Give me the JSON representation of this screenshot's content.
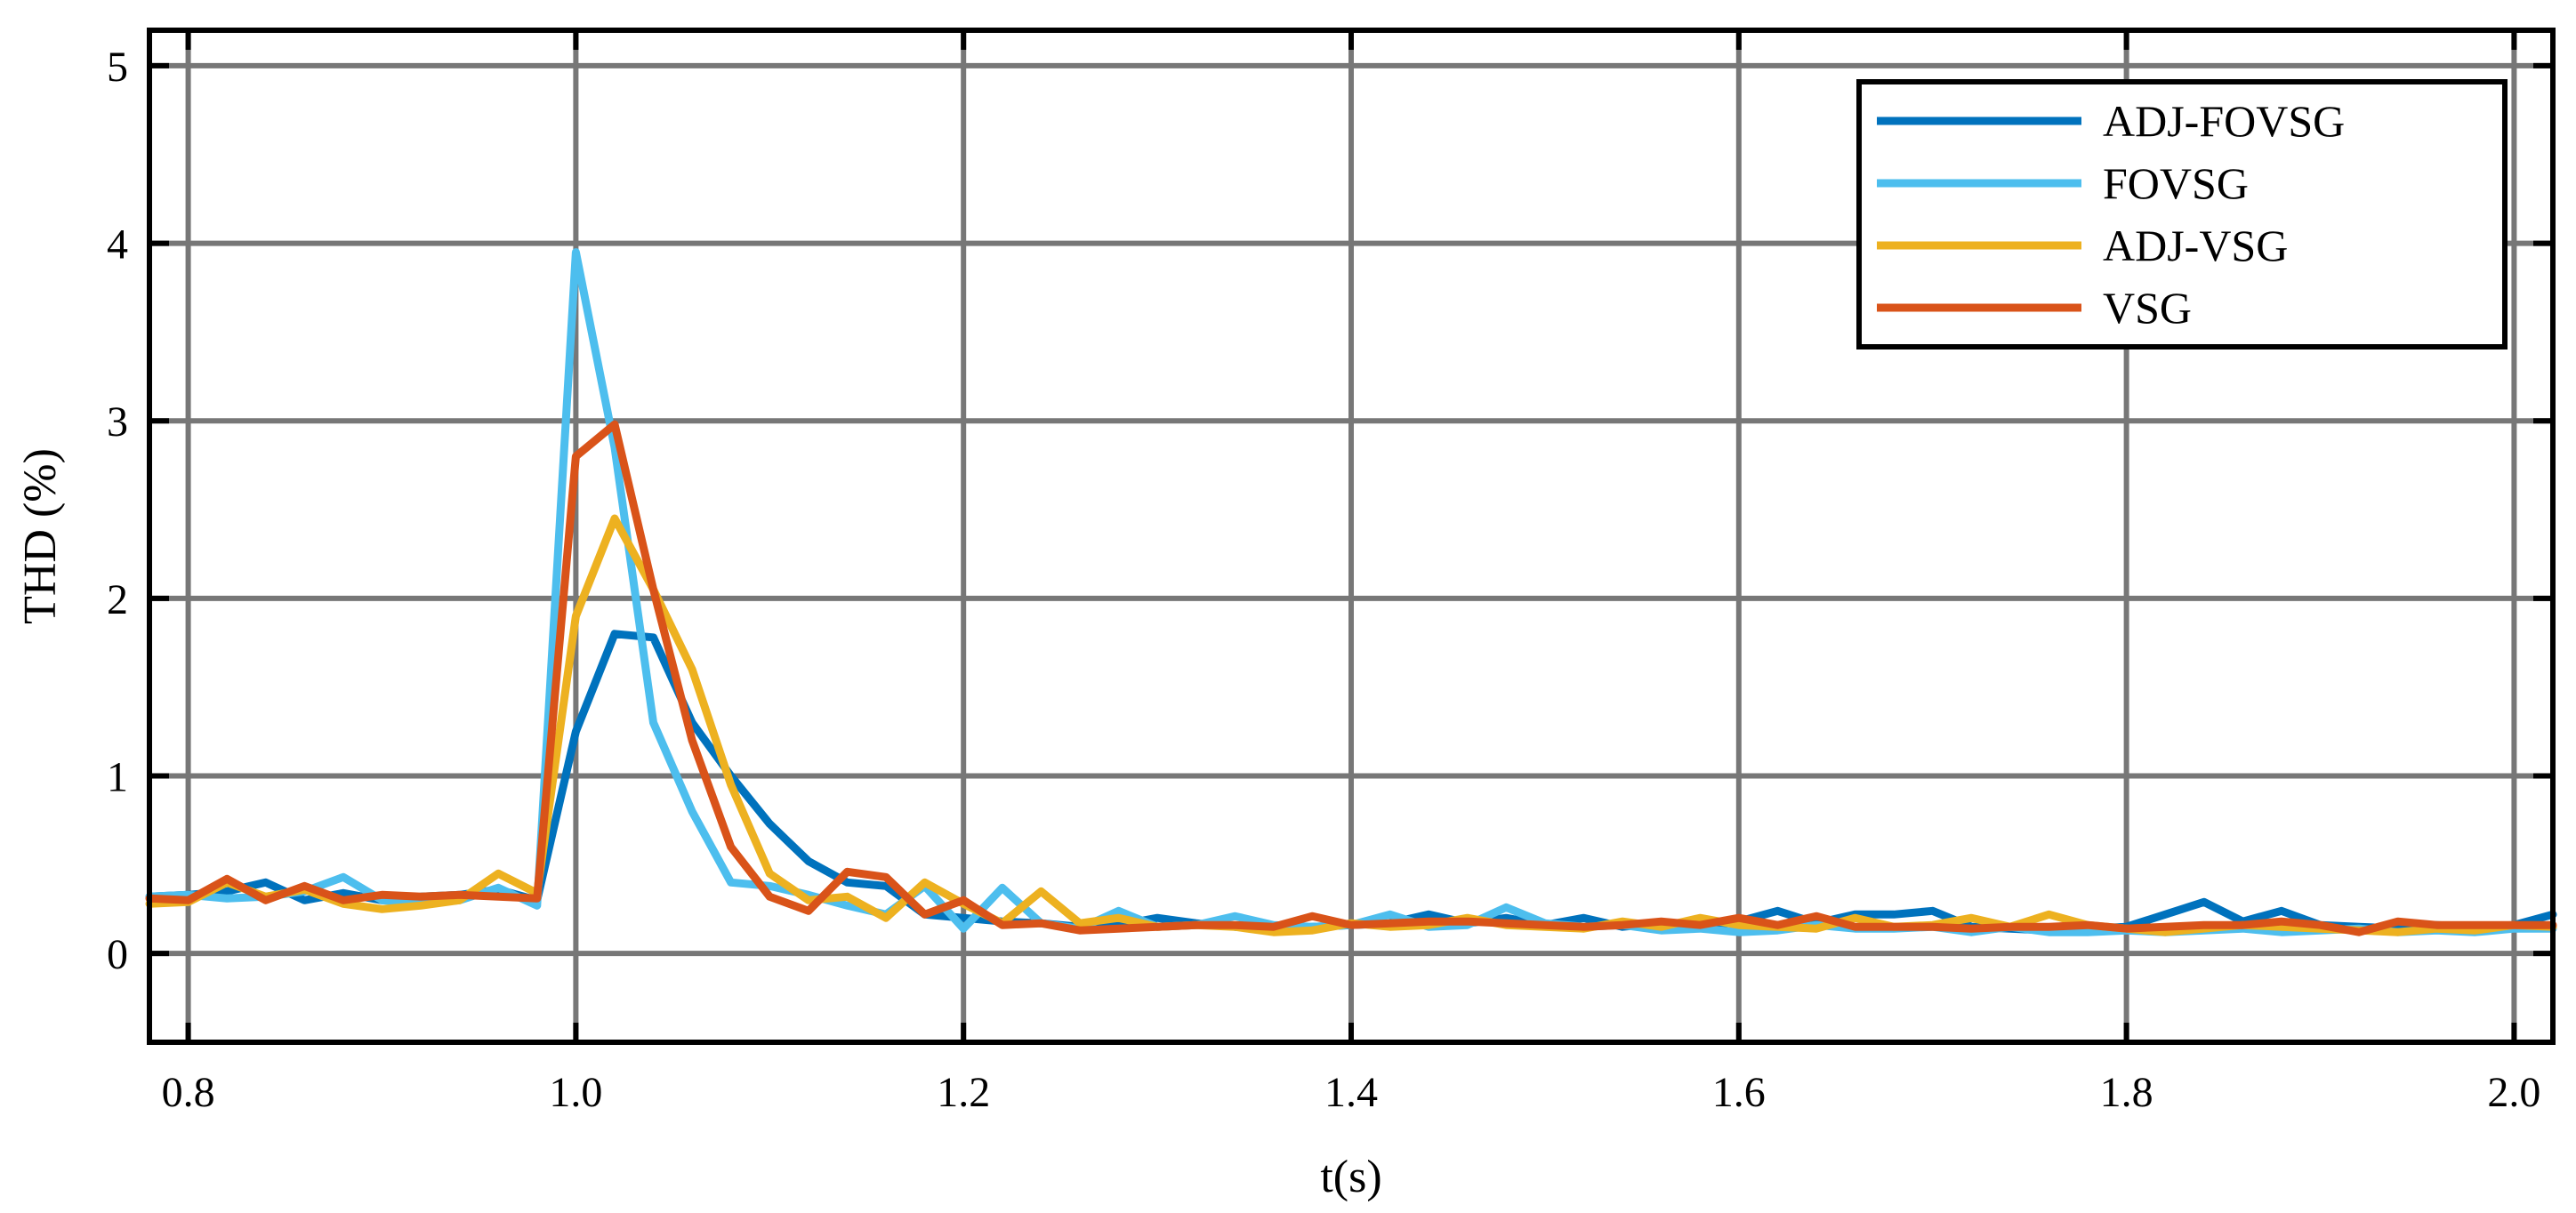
{
  "chart_data": {
    "type": "line",
    "title": "",
    "xlabel": "t(s)",
    "ylabel": "THD (%)",
    "xlim": [
      0.78,
      2.02
    ],
    "ylim": [
      -0.5,
      5.2
    ],
    "xticks": [
      0.8,
      1.0,
      1.2,
      1.4,
      1.6,
      1.8,
      2.0
    ],
    "xtick_labels": [
      "0.8",
      "1.0",
      "1.2",
      "1.4",
      "1.6",
      "1.8",
      "2.0"
    ],
    "yticks": [
      0,
      1,
      2,
      3,
      4,
      5
    ],
    "ytick_labels": [
      "0",
      "1",
      "2",
      "3",
      "4",
      "5"
    ],
    "grid": true,
    "legend_position": "top-right",
    "x": [
      0.78,
      0.8,
      0.82,
      0.84,
      0.86,
      0.88,
      0.9,
      0.92,
      0.94,
      0.96,
      0.98,
      1.0,
      1.02,
      1.04,
      1.06,
      1.08,
      1.1,
      1.12,
      1.14,
      1.16,
      1.18,
      1.2,
      1.22,
      1.24,
      1.26,
      1.28,
      1.3,
      1.32,
      1.34,
      1.36,
      1.38,
      1.4,
      1.42,
      1.44,
      1.46,
      1.48,
      1.5,
      1.52,
      1.54,
      1.56,
      1.58,
      1.6,
      1.62,
      1.64,
      1.66,
      1.68,
      1.7,
      1.72,
      1.74,
      1.76,
      1.78,
      1.8,
      1.82,
      1.84,
      1.86,
      1.88,
      1.9,
      1.92,
      1.94,
      1.96,
      1.98,
      2.0,
      2.02
    ],
    "series": [
      {
        "name": "ADJ-FOVSG",
        "color": "#0072BD",
        "values": [
          0.32,
          0.33,
          0.35,
          0.4,
          0.3,
          0.34,
          0.3,
          0.32,
          0.33,
          0.36,
          0.3,
          1.25,
          1.8,
          1.78,
          1.3,
          1.0,
          0.73,
          0.52,
          0.4,
          0.38,
          0.22,
          0.2,
          0.18,
          0.17,
          0.15,
          0.16,
          0.2,
          0.17,
          0.15,
          0.14,
          0.15,
          0.16,
          0.17,
          0.22,
          0.17,
          0.2,
          0.16,
          0.2,
          0.15,
          0.17,
          0.15,
          0.18,
          0.24,
          0.17,
          0.22,
          0.22,
          0.24,
          0.15,
          0.14,
          0.13,
          0.14,
          0.15,
          0.22,
          0.29,
          0.18,
          0.24,
          0.16,
          0.15,
          0.14,
          0.16,
          0.15,
          0.16,
          0.22
        ]
      },
      {
        "name": "FOVSG",
        "color": "#4DBEEE",
        "values": [
          0.32,
          0.33,
          0.31,
          0.32,
          0.35,
          0.43,
          0.3,
          0.28,
          0.3,
          0.37,
          0.27,
          3.95,
          2.85,
          1.3,
          0.8,
          0.4,
          0.38,
          0.33,
          0.27,
          0.22,
          0.38,
          0.14,
          0.37,
          0.17,
          0.14,
          0.24,
          0.15,
          0.16,
          0.21,
          0.16,
          0.15,
          0.16,
          0.22,
          0.15,
          0.16,
          0.26,
          0.17,
          0.15,
          0.16,
          0.13,
          0.14,
          0.12,
          0.13,
          0.16,
          0.14,
          0.14,
          0.15,
          0.12,
          0.15,
          0.12,
          0.12,
          0.13,
          0.12,
          0.13,
          0.14,
          0.12,
          0.13,
          0.14,
          0.12,
          0.13,
          0.12,
          0.14,
          0.14
        ]
      },
      {
        "name": "ADJ-VSG",
        "color": "#EDB120",
        "values": [
          0.28,
          0.29,
          0.4,
          0.32,
          0.36,
          0.28,
          0.25,
          0.27,
          0.3,
          0.45,
          0.34,
          1.9,
          2.45,
          2.05,
          1.6,
          0.95,
          0.45,
          0.3,
          0.32,
          0.2,
          0.4,
          0.28,
          0.17,
          0.35,
          0.17,
          0.2,
          0.15,
          0.16,
          0.15,
          0.12,
          0.13,
          0.17,
          0.15,
          0.16,
          0.2,
          0.16,
          0.15,
          0.14,
          0.18,
          0.15,
          0.2,
          0.16,
          0.15,
          0.14,
          0.2,
          0.15,
          0.16,
          0.2,
          0.15,
          0.22,
          0.16,
          0.14,
          0.12,
          0.14,
          0.16,
          0.15,
          0.14,
          0.13,
          0.12,
          0.14,
          0.13,
          0.16,
          0.15
        ]
      },
      {
        "name": "VSG",
        "color": "#D95319",
        "values": [
          0.31,
          0.3,
          0.42,
          0.3,
          0.38,
          0.3,
          0.33,
          0.32,
          0.33,
          0.32,
          0.31,
          2.8,
          2.98,
          2.05,
          1.2,
          0.6,
          0.32,
          0.24,
          0.46,
          0.43,
          0.22,
          0.3,
          0.16,
          0.17,
          0.13,
          0.14,
          0.15,
          0.16,
          0.16,
          0.15,
          0.21,
          0.16,
          0.17,
          0.18,
          0.18,
          0.17,
          0.16,
          0.15,
          0.16,
          0.18,
          0.16,
          0.2,
          0.16,
          0.21,
          0.15,
          0.15,
          0.15,
          0.14,
          0.15,
          0.15,
          0.16,
          0.14,
          0.15,
          0.16,
          0.16,
          0.18,
          0.16,
          0.12,
          0.18,
          0.16,
          0.16,
          0.16,
          0.16
        ]
      }
    ]
  }
}
